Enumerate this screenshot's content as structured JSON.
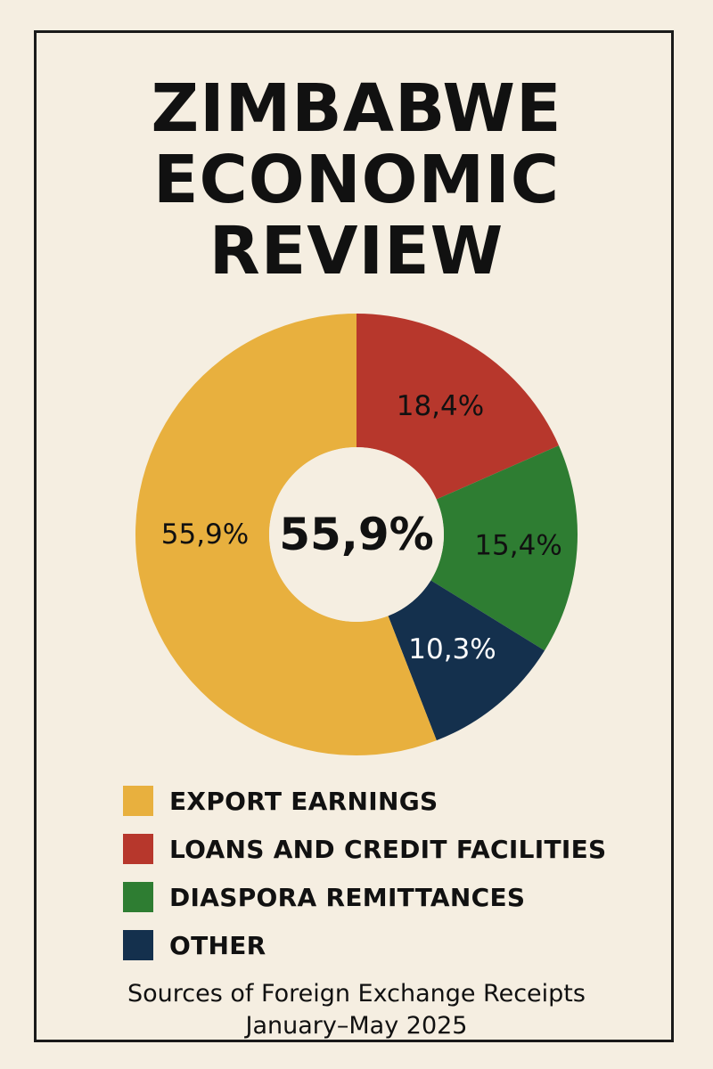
{
  "title_lines": [
    "ZIMBABWE",
    "ECONOMIC",
    "REVIEW"
  ],
  "chart_data": {
    "type": "pie",
    "donut": true,
    "center_label": "55,9%",
    "slices": [
      {
        "label": "EXPORT EARNINGS",
        "value": 55.9,
        "display": "55,9%",
        "color": "#e8b03e",
        "text_color": "#111111"
      },
      {
        "label": "LOANS AND CREDIT FACILITIES",
        "value": 18.4,
        "display": "18,4%",
        "color": "#b7372c",
        "text_color": "#111111"
      },
      {
        "label": "DIASPORA REMITTANCES",
        "value": 15.4,
        "display": "15,4%",
        "color": "#2e7d32",
        "text_color": "#111111"
      },
      {
        "label": "OTHER",
        "value": 10.3,
        "display": "10,3%",
        "color": "#14304d",
        "text_color": "#ffffff"
      }
    ],
    "legend_placement": "bottom"
  },
  "caption": {
    "line1": "Sources of Foreign Exchange Receipts",
    "line2": "January–May 2025"
  }
}
